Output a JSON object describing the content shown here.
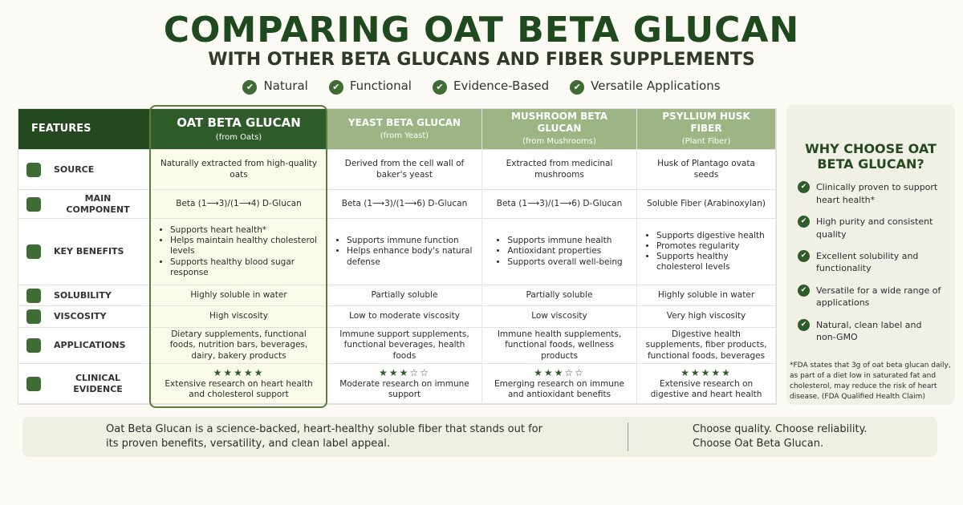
{
  "header": {
    "title": "COMPARING OAT BETA GLUCAN",
    "subtitle": "WITH OTHER BETA GLUCANS AND FIBER SUPPLEMENTS",
    "tags": [
      "Natural",
      "Functional",
      "Evidence-Based",
      "Versatile Applications"
    ]
  },
  "table": {
    "features_label": "FEATURES",
    "columns": [
      {
        "name": "OAT BETA GLUCAN",
        "sub": "(from Oats)"
      },
      {
        "name": "YEAST BETA GLUCAN",
        "sub": "(from Yeast)"
      },
      {
        "name": "MUSHROOM BETA GLUCAN",
        "sub": "(from Mushrooms)"
      },
      {
        "name": "PSYLLIUM HUSK FIBER",
        "sub": "(Plant Fiber)"
      }
    ],
    "rows": [
      {
        "label": "SOURCE",
        "cells": [
          "Naturally extracted from high-quality oats",
          "Derived from the cell wall of baker's yeast",
          "Extracted from medicinal mushrooms",
          "Husk of Plantago ovata seeds"
        ]
      },
      {
        "label": "MAIN COMPONENT",
        "cells": [
          "Beta (1⟶3)/(1⟶4) D-Glucan",
          "Beta (1⟶3)/(1⟶6) D-Glucan",
          "Beta (1⟶3)/(1⟶6) D-Glucan",
          "Soluble Fiber (Arabinoxylan)"
        ]
      },
      {
        "label": "KEY BENEFITS",
        "cells": [
          [
            "Supports heart health*",
            "Helps maintain healthy cholesterol levels",
            "Supports healthy blood sugar response"
          ],
          [
            "Supports immune function",
            "Helps enhance body's natural defense"
          ],
          [
            "Supports immune health",
            "Antioxidant properties",
            "Supports overall well-being"
          ],
          [
            "Supports digestive health",
            "Promotes regularity",
            "Supports healthy cholesterol levels"
          ]
        ]
      },
      {
        "label": "SOLUBILITY",
        "cells": [
          "Highly soluble in water",
          "Partially soluble",
          "Partially soluble",
          "Highly soluble in water"
        ]
      },
      {
        "label": "VISCOSITY",
        "cells": [
          "High viscosity",
          "Low to moderate viscosity",
          "Low viscosity",
          "Very high viscosity"
        ]
      },
      {
        "label": "APPLICATIONS",
        "cells": [
          "Dietary supplements, functional foods, nutrition bars, beverages, dairy, bakery products",
          "Immune support supplements, functional beverages, health foods",
          "Immune health supplements, functional foods, wellness products",
          "Digestive health supplements, fiber products, functional foods, beverages"
        ]
      },
      {
        "label": "CLINICAL EVIDENCE",
        "cells": [
          {
            "rating": "★★★★★",
            "text": "Extensive research on heart health and cholesterol support"
          },
          {
            "rating": "★★★☆☆",
            "text": "Moderate research on immune support"
          },
          {
            "rating": "★★★☆☆",
            "text": "Emerging research on immune and antioxidant benefits"
          },
          {
            "rating": "★★★★★",
            "text": "Extensive research on digestive and heart health"
          }
        ]
      }
    ]
  },
  "sidebar": {
    "title": "WHY CHOOSE OAT BETA GLUCAN?",
    "items": [
      "Clinically proven to support heart health*",
      "High purity and consistent quality",
      "Excellent solubility and functionality",
      "Versatile for a wide range of applications",
      "Natural, clean label and non-GMO"
    ],
    "footnote": "*FDA states that 3g of oat beta glucan daily, as part of a diet low in saturated fat and cholesterol, may reduce the risk of heart disease. (FDA Qualified Health Claim)"
  },
  "footer": {
    "left": "Oat Beta Glucan is a science-backed, heart-healthy soluble fiber that stands out for its proven benefits, versatility, and clean label appeal.",
    "right": "Choose quality. Choose reliability. Choose Oat Beta Glucan."
  }
}
